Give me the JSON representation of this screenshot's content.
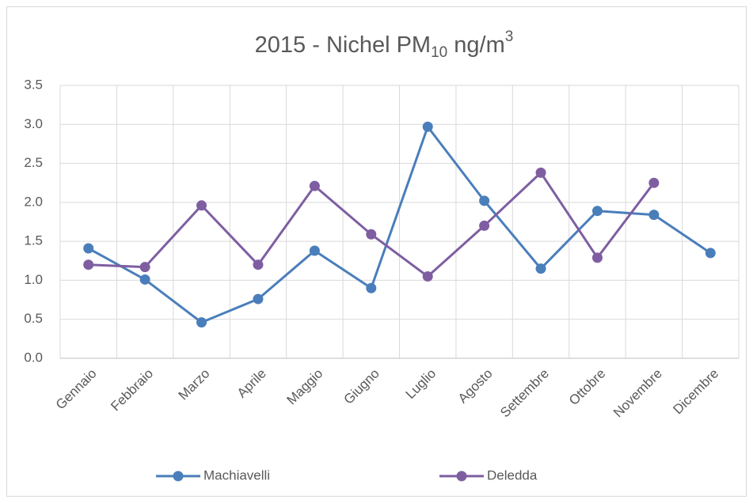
{
  "chart_data": {
    "type": "line",
    "title": [
      "2015 - Nichel PM",
      "10",
      " ng/m",
      "3"
    ],
    "categories": [
      "Gennaio",
      "Febbraio",
      "Marzo",
      "Aprile",
      "Maggio",
      "Giugno",
      "Luglio",
      "Agosto",
      "Settembre",
      "Ottobre",
      "Novembre",
      "Dicembre"
    ],
    "series": [
      {
        "name": "Machiavelli",
        "color": "#4a7ebb",
        "values": [
          1.41,
          1.01,
          0.46,
          0.76,
          1.38,
          0.9,
          2.97,
          2.02,
          1.15,
          1.89,
          1.84,
          1.35
        ]
      },
      {
        "name": "Deledda",
        "color": "#7e5ea1",
        "values": [
          1.2,
          1.17,
          1.96,
          1.2,
          2.21,
          1.59,
          1.05,
          1.7,
          2.38,
          1.29,
          2.25,
          null
        ]
      }
    ],
    "ylim": [
      0,
      3.5
    ],
    "yticks": [
      {
        "value": 0,
        "label": "0.0"
      },
      0.5,
      {
        "value": 1,
        "label": "1.0"
      },
      1.5,
      {
        "value": 2,
        "label": "2.0"
      },
      2.5,
      {
        "value": 3,
        "label": "3.0"
      },
      3.5
    ],
    "grid": true,
    "legend": "bottom"
  }
}
